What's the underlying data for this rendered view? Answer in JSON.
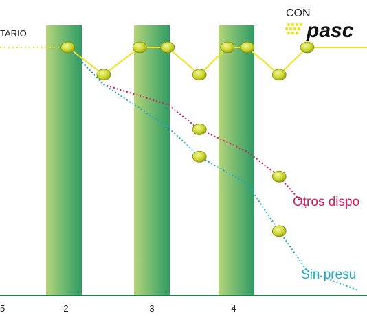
{
  "header": {
    "con_label": "CON",
    "brand_name": "pasc"
  },
  "colors": {
    "baseline": "#f2e21a",
    "otros": "#d81b60",
    "sin": "#1da7c9",
    "dot": "#c8d82a",
    "axis": "#2e7d4f",
    "brand": "#f2e21a"
  },
  "chart_data": {
    "type": "line",
    "x_ticks": [
      "5",
      "2",
      "3",
      "4"
    ],
    "x_range": [
      0.7,
      5.3
    ],
    "y_range": [
      0,
      100
    ],
    "series": [
      {
        "name": "TARIO",
        "label_text": "TARIO",
        "points": [
          {
            "x": 1.55,
            "y": 100
          },
          {
            "x": 2.0,
            "y": 89
          },
          {
            "x": 2.45,
            "y": 100
          },
          {
            "x": 2.8,
            "y": 100
          },
          {
            "x": 3.2,
            "y": 89
          },
          {
            "x": 3.55,
            "y": 100
          },
          {
            "x": 3.8,
            "y": 100
          },
          {
            "x": 4.2,
            "y": 89
          },
          {
            "x": 4.55,
            "y": 100
          },
          {
            "x": 5.3,
            "y": 100
          }
        ]
      },
      {
        "name": "Otros dispo",
        "label_text": "Otros dispo",
        "points": [
          {
            "x": 1.55,
            "y": 100
          },
          {
            "x": 2.0,
            "y": 85
          },
          {
            "x": 2.8,
            "y": 77
          },
          {
            "x": 3.2,
            "y": 67
          },
          {
            "x": 3.8,
            "y": 58
          },
          {
            "x": 4.2,
            "y": 48
          },
          {
            "x": 4.55,
            "y": 35
          }
        ],
        "markers": [
          {
            "x": 3.2,
            "y": 67
          },
          {
            "x": 4.2,
            "y": 48
          }
        ]
      },
      {
        "name": "Sin presu",
        "label_text": "Sin presu",
        "points": [
          {
            "x": 1.55,
            "y": 100
          },
          {
            "x": 2.0,
            "y": 85
          },
          {
            "x": 2.8,
            "y": 68
          },
          {
            "x": 3.2,
            "y": 56
          },
          {
            "x": 3.8,
            "y": 45
          },
          {
            "x": 4.2,
            "y": 26
          },
          {
            "x": 4.55,
            "y": 10
          },
          {
            "x": 5.2,
            "y": 2
          }
        ],
        "markers": [
          {
            "x": 3.2,
            "y": 56
          },
          {
            "x": 4.2,
            "y": 26
          }
        ]
      }
    ]
  }
}
